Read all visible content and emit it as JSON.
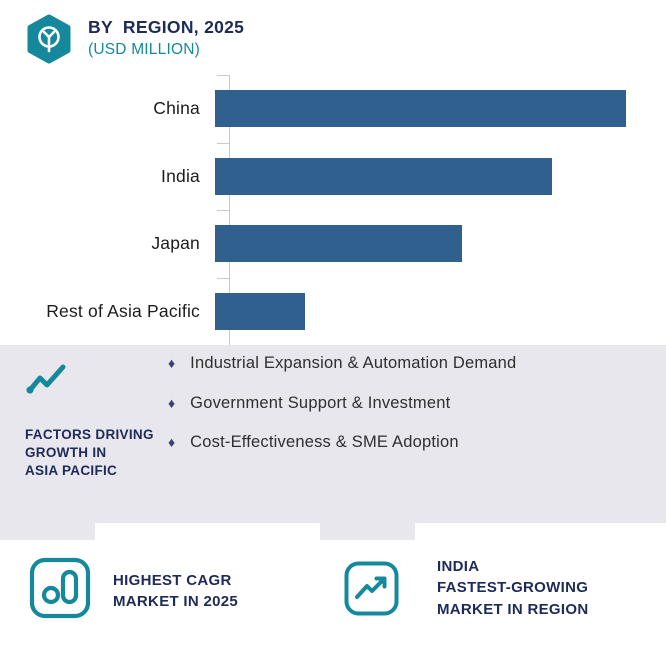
{
  "header": {
    "title": "BY  REGION, 2025",
    "subtitle": "(USD MILLION)",
    "icon": "hexagon-logo-icon"
  },
  "colors": {
    "teal": "#15899b",
    "navy": "#1e2a57",
    "bar": "#30618e",
    "panel_bg": "#e8e7ee",
    "diamond": "#3c4270",
    "text_dark": "#2f2f2f",
    "axis": "#c9c9c9"
  },
  "chart_data": {
    "type": "bar",
    "orientation": "horizontal",
    "title": "BY REGION, 2025",
    "units": "USD MILLION",
    "categories": [
      "China",
      "India",
      "Japan",
      "Rest of Asia Pacific"
    ],
    "values": [
      100,
      82,
      60,
      22
    ],
    "xlim": [
      0,
      100
    ],
    "xlabel": "",
    "ylabel": "",
    "grid": false,
    "legend": false,
    "bar_color": "#30618e"
  },
  "panel": {
    "icon": "line-chart-icon",
    "heading": "FACTORS DRIVING\nGROWTH IN\nASIA PACIFIC",
    "bullet_glyph": "♦",
    "bullets": [
      "Industrial Expansion & Automation Demand",
      "Government Support & Investment",
      "Cost-Effectiveness & SME Adoption"
    ]
  },
  "stats": [
    {
      "icon": "cagr-bars-icon",
      "label": "HIGHEST CAGR\nMARKET IN 2025"
    },
    {
      "icon": "trending-up-icon",
      "label": "INDIA\nFASTEST-GROWING\nMARKET IN REGION"
    }
  ]
}
